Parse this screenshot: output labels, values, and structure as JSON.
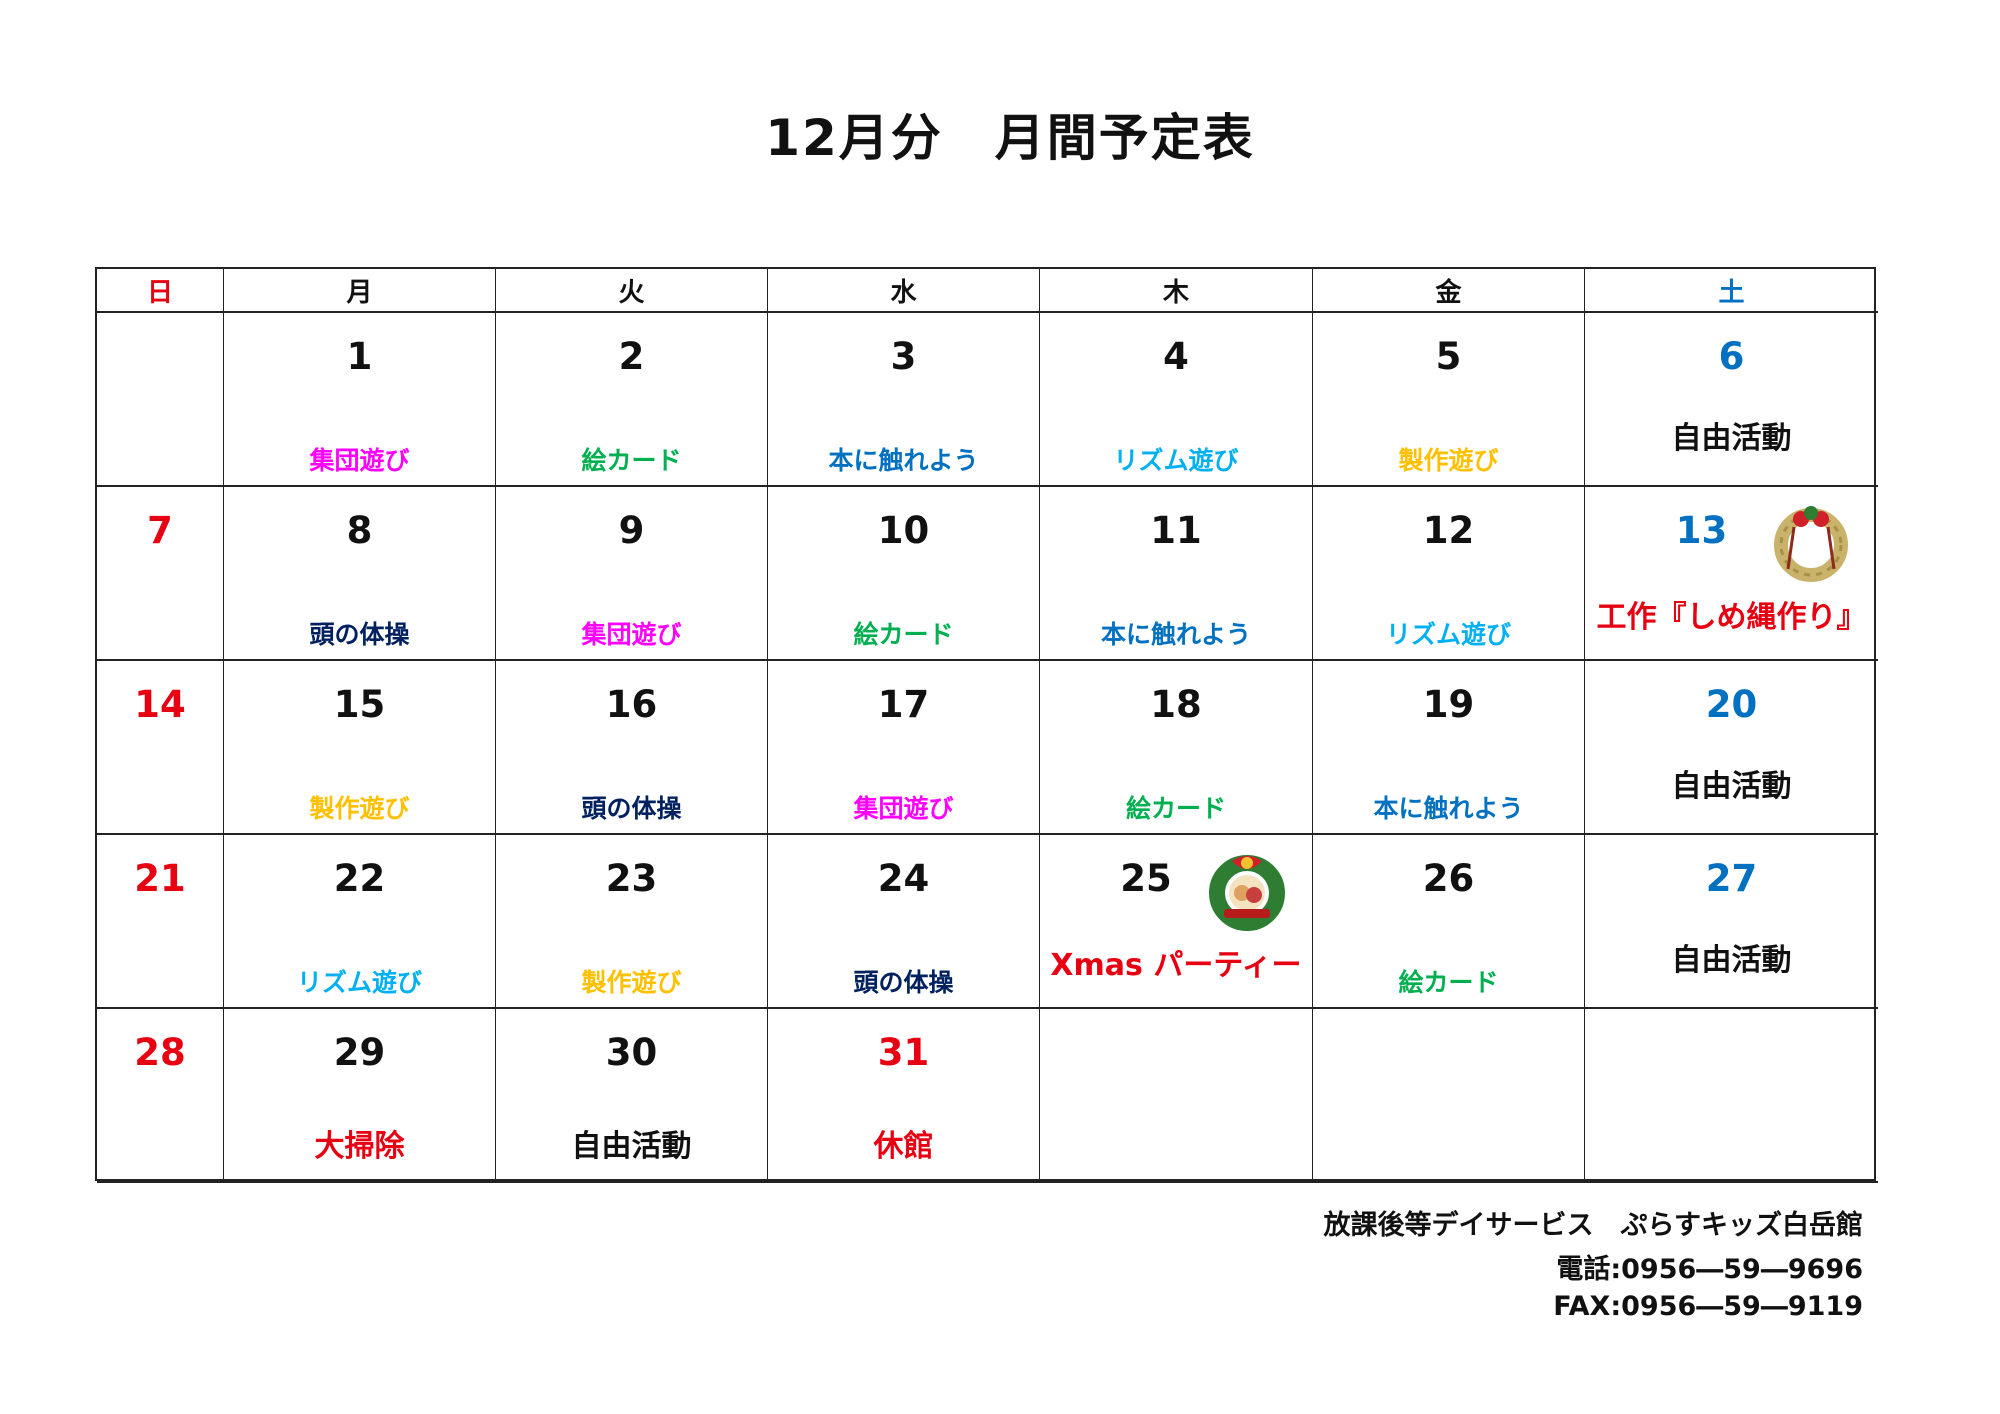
{
  "title": "12月分　月間予定表",
  "colors": {
    "sunday": "#e60012",
    "saturday": "#0070c0",
    "black": "#111111",
    "magenta": "#ff00ff",
    "green": "#00b050",
    "blue": "#0070c0",
    "cyan": "#00b0f0",
    "orange": "#ffc000",
    "navy": "#002060",
    "red": "#e60012"
  },
  "weekdays": [
    {
      "label": "日",
      "color": "sunday"
    },
    {
      "label": "月",
      "color": "black"
    },
    {
      "label": "火",
      "color": "black"
    },
    {
      "label": "水",
      "color": "black"
    },
    {
      "label": "木",
      "color": "black"
    },
    {
      "label": "金",
      "color": "black"
    },
    {
      "label": "土",
      "color": "saturday"
    }
  ],
  "weeks": [
    [
      {},
      {
        "day": "1",
        "activity": "集団遊び",
        "color": "magenta"
      },
      {
        "day": "2",
        "activity": "絵カード",
        "color": "green"
      },
      {
        "day": "3",
        "activity": "本に触れよう",
        "color": "blue"
      },
      {
        "day": "4",
        "activity": "リズム遊び",
        "color": "cyan"
      },
      {
        "day": "5",
        "activity": "製作遊び",
        "color": "orange"
      },
      {
        "day": "6",
        "day_color": "saturday",
        "activity": "自由活動",
        "color": "black",
        "style": "mid"
      }
    ],
    [
      {
        "day": "7",
        "day_color": "sunday"
      },
      {
        "day": "8",
        "activity": "頭の体操",
        "color": "navy"
      },
      {
        "day": "9",
        "activity": "集団遊び",
        "color": "magenta"
      },
      {
        "day": "10",
        "activity": "絵カード",
        "color": "green"
      },
      {
        "day": "11",
        "activity": "本に触れよう",
        "color": "blue"
      },
      {
        "day": "12",
        "activity": "リズム遊び",
        "color": "cyan"
      },
      {
        "day": "13",
        "day_color": "saturday",
        "activity": "工作『しめ縄作り』",
        "color": "red",
        "style": "big",
        "icon": "shimenawa-wreath-icon"
      }
    ],
    [
      {
        "day": "14",
        "day_color": "sunday"
      },
      {
        "day": "15",
        "activity": "製作遊び",
        "color": "orange"
      },
      {
        "day": "16",
        "activity": "頭の体操",
        "color": "navy"
      },
      {
        "day": "17",
        "activity": "集団遊び",
        "color": "magenta"
      },
      {
        "day": "18",
        "activity": "絵カード",
        "color": "green"
      },
      {
        "day": "19",
        "activity": "本に触れよう",
        "color": "blue"
      },
      {
        "day": "20",
        "day_color": "saturday",
        "activity": "自由活動",
        "color": "black",
        "style": "mid"
      }
    ],
    [
      {
        "day": "21",
        "day_color": "sunday"
      },
      {
        "day": "22",
        "activity": "リズム遊び",
        "color": "cyan"
      },
      {
        "day": "23",
        "activity": "製作遊び",
        "color": "orange"
      },
      {
        "day": "24",
        "activity": "頭の体操",
        "color": "navy"
      },
      {
        "day": "25",
        "activity": "Xmas パーティー",
        "color": "red",
        "style": "big",
        "icon": "christmas-wreath-icon"
      },
      {
        "day": "26",
        "activity": "絵カード",
        "color": "green"
      },
      {
        "day": "27",
        "day_color": "saturday",
        "activity": "自由活動",
        "color": "black",
        "style": "mid"
      }
    ],
    [
      {
        "day": "28",
        "day_color": "sunday"
      },
      {
        "day": "29",
        "activity": "大掃除",
        "color": "red",
        "style": "low"
      },
      {
        "day": "30",
        "activity": "自由活動",
        "color": "black",
        "style": "low"
      },
      {
        "day": "31",
        "day_color": "sunday",
        "activity": "休館",
        "color": "red",
        "style": "low"
      },
      {},
      {},
      {}
    ]
  ],
  "footer": {
    "facility": "放課後等デイサービス　ぷらすキッズ白岳館",
    "phone": "電話:0956―59―9696",
    "fax": "FAX:0956―59―9119"
  }
}
